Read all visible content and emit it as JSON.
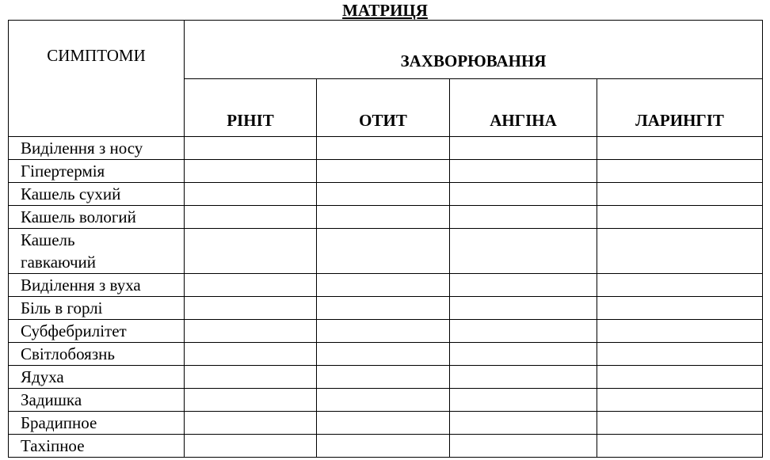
{
  "title": "МАТРИЦЯ",
  "table": {
    "symptoms_header": "СИМПТОМИ",
    "diseases_header": "ЗАХВОРЮВАННЯ",
    "diseases": [
      "РІНІТ",
      "ОТИТ",
      "АНГІНА",
      "ЛАРИНГІТ"
    ],
    "symptoms": [
      "Виділення з носу",
      "Гіпертермія",
      "Кашель сухий",
      "Кашель вологий",
      "Кашель гавкаючий",
      "Виділення з вуха",
      "Біль в горлі",
      "Субфебрилітет",
      "Світлобоязнь",
      "Ядуха",
      "Задишка",
      "Брадипное",
      "Тахіпное"
    ]
  }
}
